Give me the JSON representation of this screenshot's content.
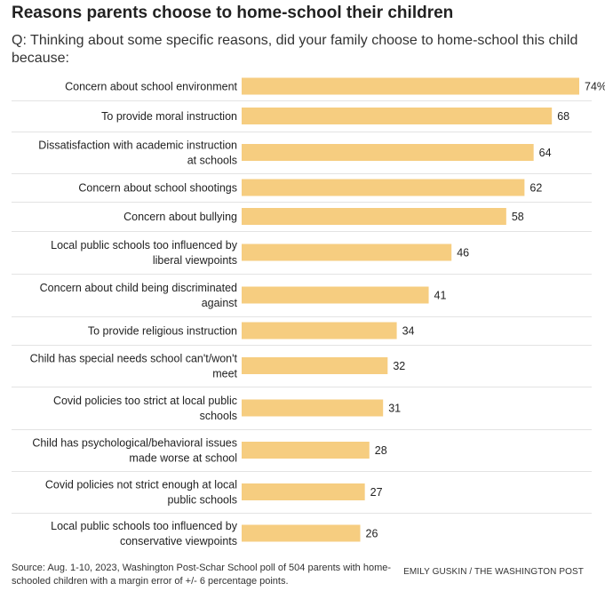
{
  "header": {
    "title": "Reasons parents choose to home-school their children",
    "subtitle": "Q: Thinking about some specific reasons, did your family choose to home-school this child because:"
  },
  "chart_data": {
    "type": "bar",
    "orientation": "horizontal",
    "categories": [
      [
        "Concern about school environment"
      ],
      [
        "To provide moral instruction"
      ],
      [
        "Dissatisfaction with academic instruction",
        "at schools"
      ],
      [
        "Concern about school shootings"
      ],
      [
        "Concern about bullying"
      ],
      [
        "Local public schools too influenced by",
        "liberal viewpoints"
      ],
      [
        "Concern about child being discriminated",
        "against"
      ],
      [
        "To provide religious instruction"
      ],
      [
        "Child has special needs school can't/won't",
        "meet"
      ],
      [
        "Covid policies too strict at local public",
        "schools"
      ],
      [
        "Child has psychological/behavioral issues",
        "made worse at school"
      ],
      [
        "Covid policies not strict enough at local",
        "public schools"
      ],
      [
        "Local public schools too influenced by",
        "conservative viewpoints"
      ]
    ],
    "values": [
      74,
      68,
      64,
      62,
      58,
      46,
      41,
      34,
      32,
      31,
      28,
      27,
      26
    ],
    "value_labels": [
      "74%",
      "68",
      "64",
      "62",
      "58",
      "46",
      "41",
      "34",
      "32",
      "31",
      "28",
      "27",
      "26"
    ],
    "xlim": [
      0,
      74
    ],
    "grid": false,
    "bar_color": "#f6cd80",
    "divider_color": "#e3e3e3"
  },
  "footer": {
    "source": "Source: Aug. 1-10, 2023, Washington Post-Schar School poll of 504 parents with home-schooled children with a margin error of +/- 6 percentage points.",
    "credit": "EMILY GUSKIN / THE WASHINGTON POST"
  }
}
